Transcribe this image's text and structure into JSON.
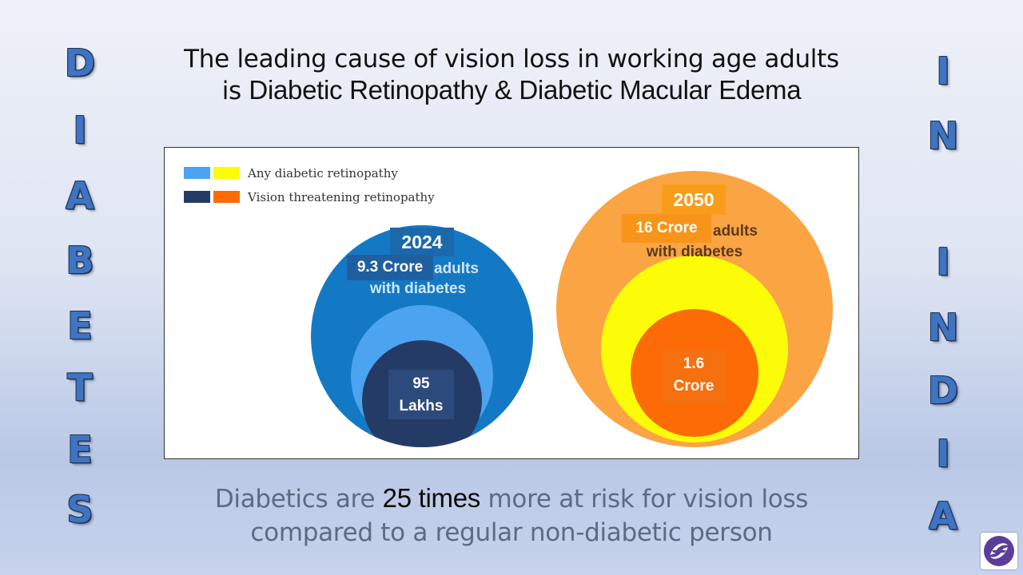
{
  "left_word": [
    "D",
    "I",
    "A",
    "B",
    "E",
    "T",
    "E",
    "S"
  ],
  "right_word": [
    "I",
    "N",
    "I",
    "N",
    "D",
    "I",
    "A"
  ],
  "title": {
    "line1": "The leading cause of vision loss in working age adults",
    "line2_prefix": "is ",
    "line2_highlight": "Diabetic Retinopathy & Diabetic Macular Edema"
  },
  "legend": {
    "any": "Any diabetic retinopathy",
    "vision": "Vision threatening retinopathy"
  },
  "diagram_2024": {
    "year": "2024",
    "adults_value": "9.3 Crore",
    "adults_text_1": "adults",
    "adults_text_2": "with diabetes",
    "vtr_line1": "95",
    "vtr_line2": "Lakhs"
  },
  "diagram_2050": {
    "year": "2050",
    "adults_value": "16 Crore",
    "adults_text_1": "adults",
    "adults_text_2": "with diabetes",
    "vtr_line1": "1.6",
    "vtr_line2": "Crore"
  },
  "bottom": {
    "prefix": "Diabetics are ",
    "highlight": "25 times",
    "suffix_line1": " more at risk for vision loss",
    "line2": "compared to a regular non-diabetic person"
  },
  "colors": {
    "blue_outer": "#1479c4",
    "blue_light": "#4ca3ef",
    "navy": "#243b66",
    "orange_outer": "#fba444",
    "yellow": "#fcfc08",
    "orange_inner": "#fc6b05"
  },
  "logo": "swirl-logo-icon"
}
